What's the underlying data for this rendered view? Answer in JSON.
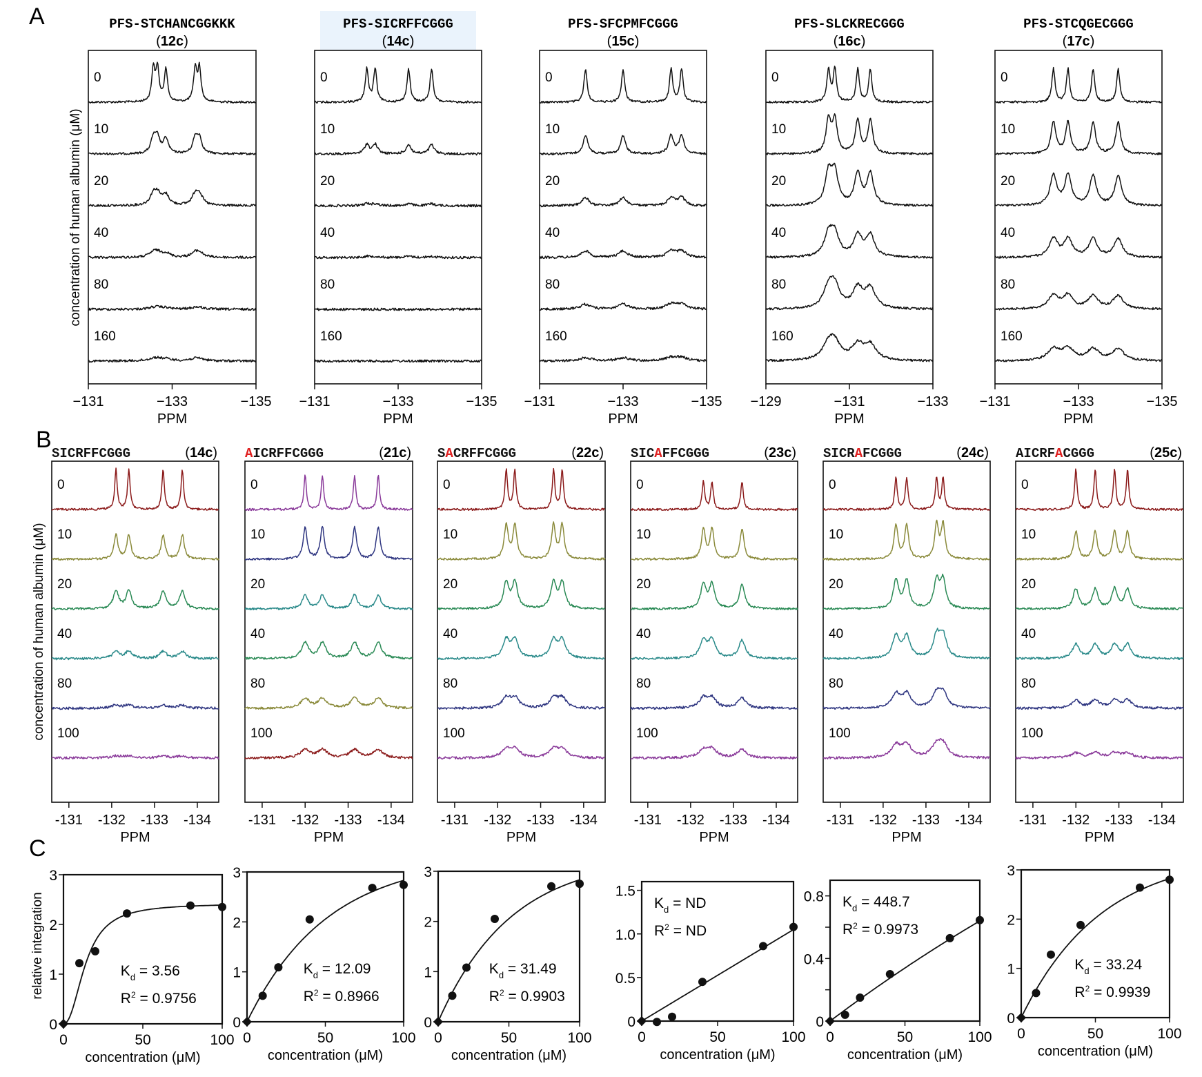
{
  "panel_labels": {
    "a": "A",
    "b": "B",
    "c": "C"
  },
  "axis_text": {
    "y_spectra": "concentration of human albumin (μM)",
    "x_spectra": "PPM",
    "y_binding": "relative integration",
    "x_binding": "concentration (μM)"
  },
  "chart_data": [
    {
      "panel": "A",
      "type": "line",
      "subtype": "stacked 19F NMR spectra",
      "trace_color": "#111111",
      "concentrations_label": [
        "0",
        "10",
        "20",
        "40",
        "80",
        "160"
      ],
      "spectra": [
        {
          "title": "PFS-STCHANCGGKKK",
          "compound": "12c",
          "highlight": false,
          "xlim": [
            -131,
            -135
          ],
          "xticks": [
            "−131",
            "−133",
            "−135"
          ],
          "xtick_values": [
            -131,
            -133,
            -135
          ],
          "peaks_ppm": [
            -132.55,
            -132.65,
            -132.85,
            -133.55,
            -133.65
          ],
          "relative_heights": [
            1.0,
            0.45,
            0.3,
            0.12,
            0.04,
            0.05
          ]
        },
        {
          "title": "PFS-SICRFFCGGG",
          "compound": "14c",
          "highlight": true,
          "xlim": [
            -131,
            -135
          ],
          "xticks": [
            "−131",
            "−133",
            "−135"
          ],
          "xtick_values": [
            -131,
            -133,
            -135
          ],
          "peaks_ppm": [
            -132.25,
            -132.45,
            -133.25,
            -133.8
          ],
          "relative_heights": [
            1.0,
            0.28,
            0.06,
            0.03,
            0.0,
            0.0
          ]
        },
        {
          "title": "PFS-SFCPMFCGGG",
          "compound": "15c",
          "highlight": false,
          "xlim": [
            -131,
            -135
          ],
          "xticks": [
            "−131",
            "−133",
            "−135"
          ],
          "xtick_values": [
            -131,
            -133,
            -135
          ],
          "peaks_ppm": [
            -132.1,
            -133.0,
            -134.15,
            -134.4
          ],
          "relative_heights": [
            1.0,
            0.55,
            0.25,
            0.2,
            0.15,
            0.1
          ]
        },
        {
          "title": "PFS-SLCKRECGGG",
          "compound": "16c",
          "highlight": false,
          "xlim": [
            -129,
            -133
          ],
          "xticks": [
            "−129",
            "−131",
            "−133"
          ],
          "xtick_values": [
            -129,
            -131,
            -133
          ],
          "peaks_ppm": [
            -130.5,
            -130.65,
            -131.2,
            -131.5
          ],
          "relative_heights": [
            1.0,
            1.0,
            0.95,
            0.65,
            0.6,
            0.45
          ]
        },
        {
          "title": "PFS-STCQGECGGG",
          "compound": "17c",
          "highlight": false,
          "xlim": [
            -131,
            -135
          ],
          "xticks": [
            "−131",
            "−133",
            "−135"
          ],
          "xtick_values": [
            -131,
            -133,
            -135
          ],
          "peaks_ppm": [
            -132.4,
            -132.75,
            -133.35,
            -133.95
          ],
          "relative_heights": [
            1.0,
            0.95,
            0.9,
            0.55,
            0.4,
            0.35
          ]
        }
      ]
    },
    {
      "panel": "B",
      "type": "line",
      "subtype": "stacked 19F NMR spectra",
      "concentrations_label": [
        "0",
        "10",
        "20",
        "40",
        "80",
        "100"
      ],
      "spectra": [
        {
          "title_parts": [
            "SICRFFCGGG"
          ],
          "mutated_index": -1,
          "compound": "14c",
          "trace_colors": [
            "#8b1a1a",
            "#8a8a3a",
            "#2a8a55",
            "#2a8a8a",
            "#2e3580",
            "#8a3a9a"
          ],
          "xlim": [
            -130.6,
            -134.5
          ],
          "xticks": [
            "-131",
            "-132",
            "-133",
            "-134"
          ],
          "xtick_values": [
            -131,
            -132,
            -133,
            -134
          ],
          "peaks_ppm": [
            -132.1,
            -132.4,
            -133.2,
            -133.65
          ],
          "relative_heights": [
            1.0,
            0.6,
            0.45,
            0.18,
            0.08,
            0.05
          ]
        },
        {
          "title_parts": [
            "AICRFFCGGG"
          ],
          "mutated_index": 0,
          "compound": "21c",
          "trace_colors": [
            "#8a3a9a",
            "#2e3580",
            "#2a8a8a",
            "#2a8a55",
            "#8a8a3a",
            "#8b1a1a"
          ],
          "xlim": [
            -130.6,
            -134.5
          ],
          "xticks": [
            "-131",
            "-132",
            "-133",
            "-134"
          ],
          "xtick_values": [
            -131,
            -132,
            -133,
            -134
          ],
          "peaks_ppm": [
            -132.0,
            -132.4,
            -133.15,
            -133.7
          ],
          "relative_heights": [
            0.85,
            0.8,
            0.35,
            0.4,
            0.25,
            0.2
          ]
        },
        {
          "title_parts": [
            "SACRFFCGGG"
          ],
          "mutated_index": 1,
          "compound": "22c",
          "trace_colors": [
            "#8b1a1a",
            "#8a8a3a",
            "#2a8a55",
            "#2a8a8a",
            "#2e3580",
            "#8a3a9a"
          ],
          "xlim": [
            -130.6,
            -134.5
          ],
          "xticks": [
            "-131",
            "-132",
            "-133",
            "-134"
          ],
          "xtick_values": [
            -131,
            -132,
            -133,
            -134
          ],
          "peaks_ppm": [
            -132.2,
            -132.4,
            -133.3,
            -133.5
          ],
          "relative_heights": [
            1.0,
            0.85,
            0.65,
            0.45,
            0.25,
            0.2
          ]
        },
        {
          "title_parts": [
            "SICAFFCGGG"
          ],
          "mutated_index": 3,
          "compound": "23c",
          "trace_colors": [
            "#8b1a1a",
            "#8a8a3a",
            "#2a8a55",
            "#2a8a8a",
            "#2e3580",
            "#8a3a9a"
          ],
          "xlim": [
            -130.6,
            -134.5
          ],
          "xticks": [
            "-131",
            "-132",
            "-133",
            "-134"
          ],
          "xtick_values": [
            -131,
            -132,
            -133,
            -134
          ],
          "peaks_ppm": [
            -132.3,
            -132.5,
            -133.2
          ],
          "relative_heights": [
            0.7,
            0.75,
            0.6,
            0.45,
            0.25,
            0.2
          ]
        },
        {
          "title_parts": [
            "SICRAFCGGG"
          ],
          "mutated_index": 4,
          "compound": "24c",
          "trace_colors": [
            "#8b1a1a",
            "#8a8a3a",
            "#2a8a55",
            "#2a8a8a",
            "#2e3580",
            "#8a3a9a"
          ],
          "xlim": [
            -130.6,
            -134.5
          ],
          "xticks": [
            "-131",
            "-132",
            "-133",
            "-134"
          ],
          "xtick_values": [
            -131,
            -132,
            -133,
            -134
          ],
          "peaks_ppm": [
            -132.3,
            -132.55,
            -133.25,
            -133.4
          ],
          "relative_heights": [
            0.8,
            0.85,
            0.7,
            0.55,
            0.35,
            0.3
          ]
        },
        {
          "title_parts": [
            "AICRFACGGG"
          ],
          "mutated_index": 5,
          "compound": "25c",
          "trace_colors": [
            "#8b1a1a",
            "#8a8a3a",
            "#2a8a55",
            "#2a8a8a",
            "#2e3580",
            "#8a3a9a"
          ],
          "xlim": [
            -130.6,
            -134.5
          ],
          "xticks": [
            "-131",
            "-132",
            "-133",
            "-134"
          ],
          "xtick_values": [
            -131,
            -132,
            -133,
            -134
          ],
          "peaks_ppm": [
            -132.0,
            -132.45,
            -132.9,
            -133.2
          ],
          "relative_heights": [
            1.0,
            0.7,
            0.5,
            0.35,
            0.2,
            0.12
          ]
        }
      ]
    },
    {
      "panel": "C",
      "type": "scatter",
      "subtype": "binding curves with fit",
      "plots": [
        {
          "compound": "14c",
          "x": [
            0,
            10,
            20,
            40,
            80,
            100
          ],
          "y": [
            0,
            1.22,
            1.46,
            2.22,
            2.38,
            2.35
          ],
          "ylim": [
            0,
            3
          ],
          "yticks": [
            "0",
            "1",
            "2",
            "3"
          ],
          "ytick_values": [
            0,
            1,
            2,
            3
          ],
          "xlim": [
            0,
            100
          ],
          "xticks": [
            "0",
            "50",
            "100"
          ],
          "xtick_values": [
            0,
            50,
            100
          ],
          "fit": "sigmoid",
          "fit_params": {
            "bmax": 2.42,
            "kd": 3.56
          },
          "kd_label": "= 3.56",
          "r2_label": "= 0.9756",
          "annotation_pos": "bottom-right",
          "show_ylabel": true
        },
        {
          "compound": "21c",
          "x": [
            0,
            10,
            20,
            40,
            80,
            100
          ],
          "y": [
            0,
            0.52,
            1.09,
            2.05,
            2.68,
            2.74
          ],
          "ylim": [
            0,
            3
          ],
          "yticks": [
            "0",
            "1",
            "2",
            "3"
          ],
          "ytick_values": [
            0,
            1,
            2,
            3
          ],
          "xlim": [
            0,
            100
          ],
          "xticks": [
            "0",
            "50",
            "100"
          ],
          "xtick_values": [
            0,
            50,
            100
          ],
          "fit": "exp",
          "fit_params": {
            "bmax": 3.3,
            "k": 0.0195
          },
          "kd_label": "= 12.09",
          "r2_label": "= 0.8966",
          "annotation_pos": "bottom-right",
          "show_ylabel": false
        },
        {
          "compound": "22c",
          "x": [
            0,
            10,
            20,
            40,
            80,
            100
          ],
          "y": [
            0,
            0.52,
            1.08,
            2.05,
            2.7,
            2.75
          ],
          "ylim": [
            0,
            3
          ],
          "yticks": [
            "0",
            "1",
            "2",
            "3"
          ],
          "ytick_values": [
            0,
            1,
            2,
            3
          ],
          "xlim": [
            0,
            100
          ],
          "xticks": [
            "0",
            "50",
            "100"
          ],
          "xtick_values": [
            0,
            50,
            100
          ],
          "fit": "exp",
          "fit_params": {
            "bmax": 3.3,
            "k": 0.0195
          },
          "kd_label": "= 31.49",
          "r2_label": "= 0.9903",
          "annotation_pos": "bottom-right",
          "show_ylabel": false
        },
        {
          "compound": "23c",
          "x": [
            0,
            10,
            20,
            40,
            80,
            100
          ],
          "y": [
            0,
            -0.01,
            0.05,
            0.45,
            0.86,
            1.08
          ],
          "ylim": [
            0,
            1.6
          ],
          "yticks": [
            "0",
            "0.5",
            "1.0",
            "1.5"
          ],
          "ytick_values": [
            0,
            0.5,
            1.0,
            1.5
          ],
          "xlim": [
            0,
            100
          ],
          "xticks": [
            "0",
            "50",
            "100"
          ],
          "xtick_values": [
            0,
            50,
            100
          ],
          "fit": "linear",
          "fit_params": {
            "slope": 0.0105
          },
          "kd_label": "= ND",
          "r2_label": "= ND",
          "annotation_pos": "top-left",
          "show_ylabel": false
        },
        {
          "compound": "24c",
          "x": [
            0,
            10,
            20,
            40,
            80,
            100
          ],
          "y": [
            0,
            0.04,
            0.15,
            0.3,
            0.53,
            0.645
          ],
          "ylim": [
            0,
            0.9
          ],
          "yticks": [
            "0",
            "",
            "0.4",
            "",
            "0.8"
          ],
          "ytick_values": [
            0,
            0.2,
            0.4,
            0.6,
            0.8
          ],
          "xlim": [
            0,
            100
          ],
          "xticks": [
            "0",
            "50",
            "100"
          ],
          "xtick_values": [
            0,
            50,
            100
          ],
          "fit": "exp",
          "fit_params": {
            "bmax": 3.0,
            "k": 0.0024
          },
          "kd_label": "= 448.7",
          "r2_label": "= 0.9973",
          "annotation_pos": "top-left",
          "show_ylabel": false
        },
        {
          "compound": "25c",
          "x": [
            0,
            10,
            20,
            40,
            80,
            100
          ],
          "y": [
            0,
            0.5,
            1.28,
            1.88,
            2.64,
            2.8
          ],
          "ylim": [
            0,
            3
          ],
          "yticks": [
            "0",
            "1",
            "2",
            "3"
          ],
          "ytick_values": [
            0,
            1,
            2,
            3
          ],
          "xlim": [
            0,
            100
          ],
          "xticks": [
            "0",
            "50",
            "100"
          ],
          "xtick_values": [
            0,
            50,
            100
          ],
          "fit": "exp",
          "fit_params": {
            "bmax": 3.35,
            "k": 0.0185
          },
          "kd_label": "= 33.24",
          "r2_label": "= 0.9939",
          "annotation_pos": "bottom-right",
          "show_ylabel": false
        }
      ]
    }
  ]
}
